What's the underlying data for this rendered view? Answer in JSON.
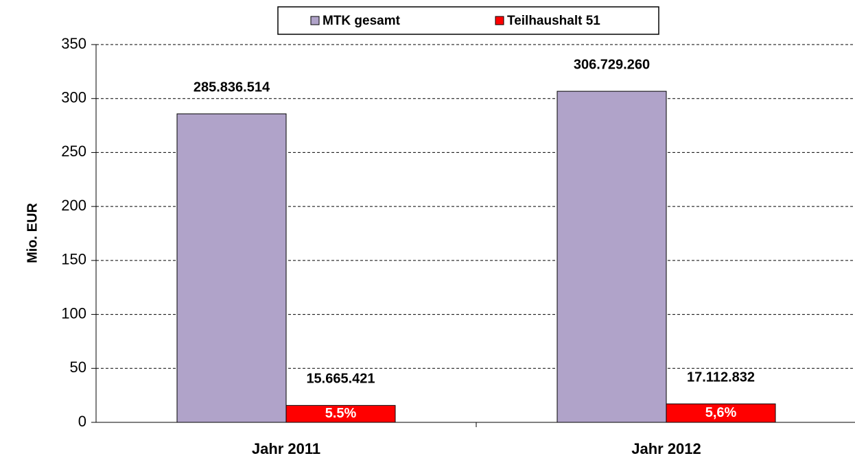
{
  "chart_data": {
    "type": "bar",
    "y_axis_label": "Mio. EUR",
    "categories": [
      "Jahr 2011",
      "Jahr 2012"
    ],
    "series": [
      {
        "name": "MTK gesamt",
        "color": "#b0a3c9",
        "values": [
          285.836514,
          306.72926
        ],
        "value_labels": [
          "285.836.514",
          "306.729.260"
        ]
      },
      {
        "name": "Teilhaushalt 51",
        "color": "#ff0000",
        "values": [
          15.665421,
          17.112832
        ],
        "value_labels": [
          "15.665.421",
          "17.112.832"
        ],
        "inner_labels": [
          "5.5%",
          "5,6%"
        ]
      }
    ],
    "ylim": [
      0,
      350
    ],
    "yticks": [
      0,
      50,
      100,
      150,
      200,
      250,
      300,
      350
    ],
    "grid": true,
    "legend": "top"
  }
}
